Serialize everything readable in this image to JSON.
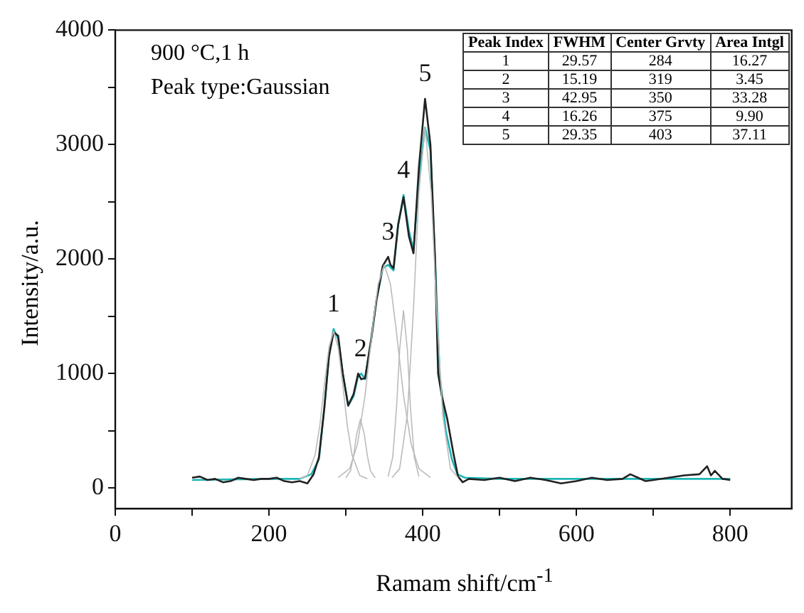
{
  "chart_data": {
    "type": "line",
    "xlabel": "Ramam shift/cm$^{-1}$",
    "ylabel": "Intensity/a.u.",
    "xlim": [
      0,
      880
    ],
    "ylim": [
      -180,
      4000
    ],
    "xticks": [
      0,
      {
        "value": 100,
        "label": null
      },
      200,
      {
        "value": 300,
        "label": null
      },
      400,
      {
        "value": 500,
        "label": null
      },
      600,
      {
        "value": 700,
        "label": null
      },
      800
    ],
    "yticks": [
      0,
      {
        "value": 500,
        "label": null
      },
      1000,
      {
        "value": 1500,
        "label": null
      },
      2000,
      {
        "value": 2500,
        "label": null
      },
      3000,
      {
        "value": 3500,
        "label": null
      },
      4000
    ],
    "grid": false,
    "legend": false,
    "marker": "none",
    "line_style": "solid",
    "series": [
      {
        "color": "#bbbbbb",
        "x": [
          240,
          250,
          260,
          266,
          272,
          278,
          284,
          290,
          296,
          302,
          308,
          318,
          328
        ],
        "values": [
          80,
          110,
          290,
          540,
          900,
          1230,
          1370,
          1230,
          900,
          540,
          290,
          110,
          80
        ]
      },
      {
        "color": "#bbbbbb",
        "x": [
          300,
          306,
          310,
          314,
          319,
          324,
          328,
          332,
          338
        ],
        "values": [
          90,
          150,
          280,
          470,
          600,
          470,
          280,
          150,
          90
        ]
      },
      {
        "color": "#bbbbbb",
        "x": [
          290,
          305,
          315,
          325,
          335,
          342,
          350,
          358,
          365,
          375,
          385,
          395,
          410
        ],
        "values": [
          90,
          170,
          380,
          810,
          1410,
          1780,
          1950,
          1780,
          1410,
          810,
          380,
          170,
          90
        ]
      },
      {
        "color": "#bbbbbb",
        "x": [
          355,
          361,
          366,
          370,
          375,
          380,
          384,
          389,
          395
        ],
        "values": [
          100,
          270,
          710,
          1210,
          1550,
          1210,
          710,
          270,
          100
        ]
      },
      {
        "color": "#bbbbbb",
        "x": [
          360,
          370,
          380,
          388,
          395,
          403,
          411,
          418,
          426,
          436,
          446
        ],
        "values": [
          90,
          170,
          640,
          1570,
          2580,
          3150,
          2580,
          1570,
          640,
          170,
          90
        ]
      },
      {
        "color": "#222222",
        "x": [
          100,
          110,
          120,
          130,
          140,
          150,
          160,
          170,
          180,
          190,
          200,
          210,
          220,
          230,
          240,
          250,
          258,
          265,
          272,
          278,
          284,
          290,
          296,
          303,
          310,
          316,
          320,
          325,
          333,
          340,
          348,
          355,
          358,
          362,
          368,
          375,
          382,
          388,
          395,
          403,
          410,
          416,
          420,
          425,
          432,
          440,
          446,
          452,
          460,
          480,
          500,
          520,
          540,
          560,
          580,
          600,
          620,
          640,
          660,
          670,
          680,
          690,
          700,
          720,
          740,
          760,
          770,
          775,
          780,
          790,
          800
        ],
        "values": [
          90,
          100,
          70,
          80,
          50,
          60,
          90,
          80,
          70,
          80,
          80,
          90,
          60,
          50,
          60,
          40,
          120,
          270,
          700,
          1150,
          1360,
          1330,
          1000,
          720,
          820,
          1000,
          950,
          960,
          1300,
          1650,
          1940,
          2020,
          1950,
          1920,
          2300,
          2540,
          2200,
          2050,
          2800,
          3400,
          3000,
          2000,
          1000,
          800,
          600,
          300,
          100,
          50,
          80,
          70,
          90,
          60,
          90,
          70,
          40,
          60,
          90,
          70,
          80,
          120,
          90,
          60,
          70,
          90,
          110,
          120,
          190,
          110,
          150,
          80,
          70
        ]
      },
      {
        "color": "#1fb5b5",
        "x": [
          100,
          150,
          200,
          240,
          255,
          265,
          272,
          278,
          284,
          290,
          296,
          303,
          310,
          316,
          320,
          325,
          333,
          340,
          348,
          355,
          362,
          368,
          375,
          382,
          388,
          395,
          403,
          410,
          416,
          422,
          430,
          438,
          445,
          455,
          500,
          600,
          700,
          800
        ],
        "values": [
          70,
          75,
          80,
          80,
          120,
          250,
          700,
          1150,
          1390,
          1300,
          1000,
          720,
          800,
          980,
          1000,
          950,
          1300,
          1650,
          1920,
          1950,
          1900,
          2300,
          2560,
          2250,
          2080,
          2700,
          3150,
          2950,
          2000,
          1000,
          500,
          250,
          120,
          90,
          80,
          80,
          80,
          80
        ]
      }
    ],
    "annotations": [
      "900 °C,1 h",
      "Peak type:Gaussian",
      "Peak Index",
      "FWHM",
      "Center Grvty",
      "Area Intgl",
      "1",
      "29.57",
      "284",
      "16.27",
      "2",
      "15.19",
      "319",
      "3.45",
      "3",
      "42.95",
      "350",
      "33.28",
      "4",
      "16.26",
      "375",
      "9.90",
      "5",
      "29.35",
      "403",
      "37.11",
      {
        "text": "1",
        "x": 284,
        "y": 1390
      },
      {
        "text": "2",
        "x": 319,
        "y": 1000
      },
      {
        "text": "3",
        "x": 355,
        "y": 2020
      },
      {
        "text": "4",
        "x": 375,
        "y": 2560
      },
      {
        "text": "5",
        "x": 403,
        "y": 3400
      }
    ]
  }
}
